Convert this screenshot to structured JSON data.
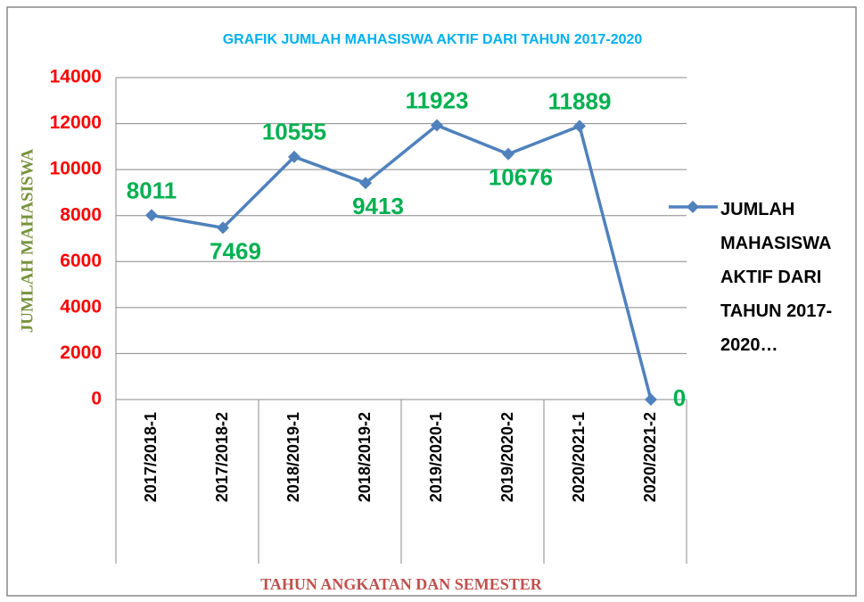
{
  "chart_data": {
    "type": "line",
    "title": "GRAFIK JUMLAH MAHASISWA AKTIF DARI TAHUN 2017-2020",
    "x_label": "TAHUN ANGKATAN DAN SEMESTER",
    "y_label": "JUMLAH MAHASISWA",
    "categories": [
      "2017/2018-1",
      "2017/2018-2",
      "2018/2019-1",
      "2018/2019-2",
      "2019/2020-1",
      "2019/2020-2",
      "2020/2021-1",
      "2020/2021-2"
    ],
    "series": [
      {
        "name": "JUMLAH MAHASISWA AKTIF DARI TAHUN 2017-2020…",
        "color": "#4f81bd",
        "values": [
          8011,
          7469,
          10555,
          9413,
          11923,
          10676,
          11889,
          0
        ]
      }
    ],
    "ylim": [
      0,
      14000
    ],
    "yticks": [
      0,
      2000,
      4000,
      6000,
      8000,
      10000,
      12000,
      14000
    ],
    "grid": true,
    "legend": "right"
  }
}
